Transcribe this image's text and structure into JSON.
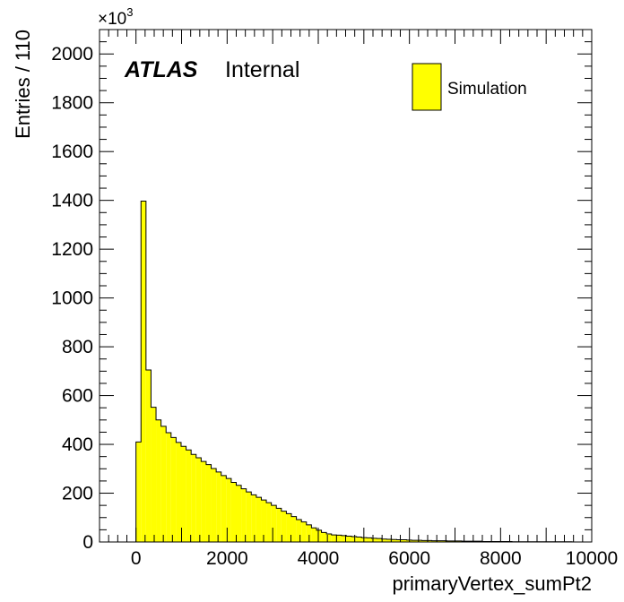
{
  "chart_data": {
    "type": "bar",
    "xlabel": "primaryVertex_sumPt2",
    "ylabel": "Entries / 110",
    "y_multiplier_base": "×10",
    "y_multiplier_exp": "3",
    "xlim": [
      -800,
      10000
    ],
    "ylim": [
      0,
      2100
    ],
    "x_ticks": [
      0,
      2000,
      4000,
      6000,
      8000,
      10000
    ],
    "x_tick_labels": [
      "0",
      "2000",
      "4000",
      "6000",
      "8000",
      "10000"
    ],
    "y_ticks": [
      0,
      200,
      400,
      600,
      800,
      1000,
      1200,
      1400,
      1600,
      1800,
      2000
    ],
    "y_tick_labels": [
      "0",
      "200",
      "400",
      "600",
      "800",
      "1000",
      "1200",
      "1400",
      "1600",
      "1800",
      "2000"
    ],
    "bin_width": 110,
    "bin_start": 0,
    "values": [
      410,
      1397,
      705,
      552,
      500,
      474,
      448,
      428,
      408,
      392,
      377,
      359,
      345,
      330,
      317,
      301,
      287,
      272,
      260,
      244,
      232,
      218,
      205,
      193,
      183,
      172,
      161,
      150,
      138,
      126,
      116,
      104,
      92,
      82,
      70,
      58,
      48,
      39,
      33,
      29,
      28,
      26,
      24,
      22,
      20,
      18,
      17,
      15,
      14,
      12,
      11,
      10,
      9,
      9,
      8,
      7,
      7,
      6,
      6,
      5,
      5,
      5,
      4,
      4,
      4,
      3,
      3,
      3,
      3,
      2,
      2,
      2,
      2,
      2,
      2,
      1,
      1,
      1,
      1,
      1,
      1,
      1,
      1,
      1,
      1,
      1,
      1
    ],
    "fill_color": "#ffff00",
    "line_color": "#000000",
    "legend": {
      "entries": [
        "Simulation"
      ],
      "position": "top-right"
    },
    "label_bold": "ATLAS",
    "label_normal": "Internal"
  }
}
